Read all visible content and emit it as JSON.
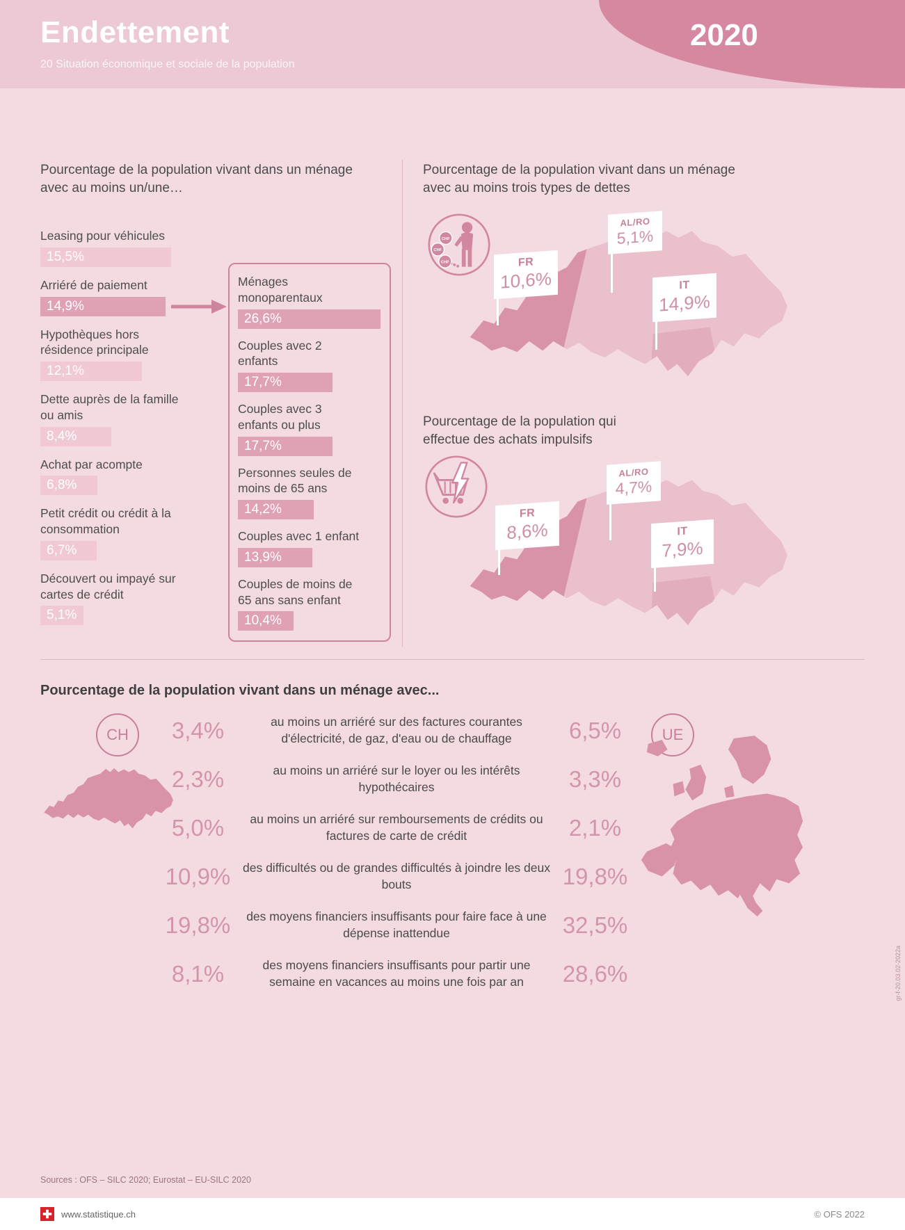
{
  "header": {
    "title": "Endettement",
    "subtitle": "20 Situation économique et sociale de la population",
    "year": "2020"
  },
  "colors": {
    "accent_rose": "#d688a0",
    "bar_light": "#f0c9d4",
    "bar_dark": "#dfa2b5",
    "map_light": "#e9c0cb",
    "map_dark": "#d893a9",
    "number_pink": "#d295ab"
  },
  "icons": {
    "debts": "person-with-chf-debt-chain-icon",
    "impulsive": "shopping-cart-lightning-icon",
    "footer": "swiss-flag-icon"
  },
  "chart_data": [
    {
      "type": "bar",
      "title": "Pourcentage de la population vivant dans un ménage avec au moins un/une…",
      "categories": [
        "Leasing pour véhicules",
        "Arriéré de paiement",
        "Hypothèques hors résidence principale",
        "Dette auprès de la famille ou amis",
        "Achat par acompte",
        "Petit crédit ou crédit à la consommation",
        "Découvert ou impayé sur cartes de crédit"
      ],
      "values": [
        15.5,
        14.9,
        12.1,
        8.4,
        6.8,
        6.7,
        5.1
      ],
      "value_labels": [
        "15,5%",
        "14,9%",
        "12,1%",
        "8,4%",
        "6,8%",
        "6,7%",
        "5,1%"
      ],
      "highlighted_category": "Arriéré de paiement"
    },
    {
      "type": "bar",
      "categories": [
        "Ménages monoparentaux",
        "Couples avec 2 enfants",
        "Couples avec 3 enfants ou plus",
        "Personnes seules de moins de 65 ans",
        "Couples avec 1 enfant",
        "Couples de moins de 65 ans sans enfant"
      ],
      "values": [
        26.6,
        17.7,
        17.7,
        14.2,
        13.9,
        10.4
      ],
      "value_labels": [
        "26,6%",
        "17,7%",
        "17,7%",
        "14,2%",
        "13,9%",
        "10,4%"
      ]
    },
    {
      "type": "map",
      "title": "Pourcentage de la population vivant dans un ménage avec au moins trois types de dettes",
      "regions": [
        {
          "code": "FR",
          "value": 10.6,
          "label": "10,6%"
        },
        {
          "code": "AL/RO",
          "value": 5.1,
          "label": "5,1%"
        },
        {
          "code": "IT",
          "value": 14.9,
          "label": "14,9%"
        }
      ]
    },
    {
      "type": "map",
      "title": "Pourcentage de la population qui effectue des achats impulsifs",
      "regions": [
        {
          "code": "FR",
          "value": 8.6,
          "label": "8,6%"
        },
        {
          "code": "AL/RO",
          "value": 4.7,
          "label": "4,7%"
        },
        {
          "code": "IT",
          "value": 7.9,
          "label": "7,9%"
        }
      ]
    },
    {
      "type": "table",
      "title": "Pourcentage de la population vivant dans un ménage avec...",
      "columns": [
        "CH",
        "UE"
      ],
      "rows": [
        {
          "ch": 3.4,
          "ch_label": "3,4%",
          "text": "au moins un arriéré sur des factures courantes d'électricité, de gaz, d'eau ou de chauffage",
          "ue": 6.5,
          "ue_label": "6,5%"
        },
        {
          "ch": 2.3,
          "ch_label": "2,3%",
          "text": "au moins un arriéré sur le loyer ou les intérêts hypothécaires",
          "ue": 3.3,
          "ue_label": "3,3%"
        },
        {
          "ch": 5.0,
          "ch_label": "5,0%",
          "text": "au moins un arriéré sur remboursements de crédits ou factures de carte de crédit",
          "ue": 2.1,
          "ue_label": "2,1%"
        },
        {
          "ch": 10.9,
          "ch_label": "10,9%",
          "text": "des difficultés ou de grandes difficultés à joindre les deux bouts",
          "ue": 19.8,
          "ue_label": "19,8%"
        },
        {
          "ch": 19.8,
          "ch_label": "19,8%",
          "text": "des moyens financiers insuffisants pour faire face à une dépense inattendue",
          "ue": 32.5,
          "ue_label": "32,5%"
        },
        {
          "ch": 8.1,
          "ch_label": "8,1%",
          "text": "des moyens financiers insuffisants pour partir une semaine en vacances au moins une fois par an",
          "ue": 28.6,
          "ue_label": "28,6%"
        }
      ]
    }
  ],
  "footer": {
    "sources": "Sources : OFS – SILC 2020; Eurostat – EU-SILC 2020",
    "site": "www.statistique.ch",
    "copyright": "© OFS 2022",
    "ref": "gr-f-20.03.02-2022a"
  }
}
